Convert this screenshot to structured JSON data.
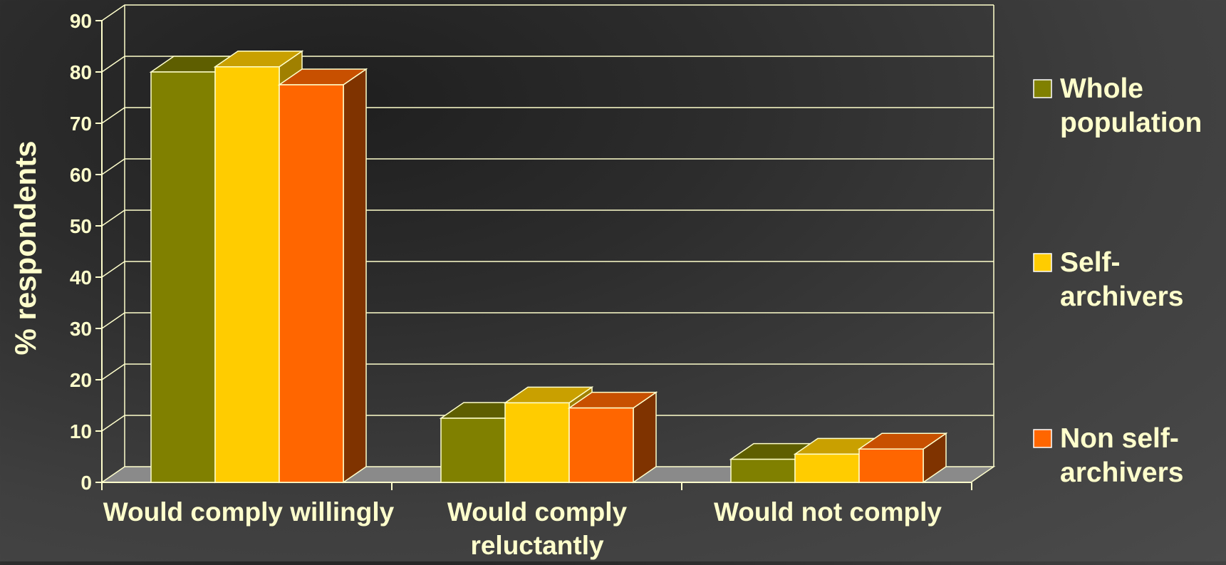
{
  "chart_data": {
    "type": "bar",
    "title": "",
    "xlabel": "",
    "ylabel": "% respondents",
    "ylim": [
      0,
      90
    ],
    "yticks": [
      0,
      10,
      20,
      30,
      40,
      50,
      60,
      70,
      80,
      90
    ],
    "grid": true,
    "three_d": true,
    "legend_position": "right",
    "categories": [
      [
        "Would comply willingly"
      ],
      [
        "Would comply",
        "reluctantly"
      ],
      [
        "Would not comply"
      ]
    ],
    "series": [
      {
        "name": [
          "Whole",
          "population"
        ],
        "values": [
          80,
          12.5,
          4.5
        ]
      },
      {
        "name": [
          "Self-",
          "archivers"
        ],
        "values": [
          81,
          15.5,
          5.5
        ]
      },
      {
        "name": [
          "Non self-",
          "archivers"
        ],
        "values": [
          77.5,
          14.5,
          6.5
        ]
      }
    ]
  },
  "colors": {
    "text": "#FFFFCC",
    "grid": "#FFFFCC",
    "floor": "#8A8A8A",
    "series": [
      {
        "front": "#808000",
        "top": "#5E5E00",
        "side": "#474700"
      },
      {
        "front": "#FFCC00",
        "top": "#C9A000",
        "side": "#A08000"
      },
      {
        "front": "#FF6600",
        "top": "#C85000",
        "side": "#7F3300"
      }
    ]
  }
}
